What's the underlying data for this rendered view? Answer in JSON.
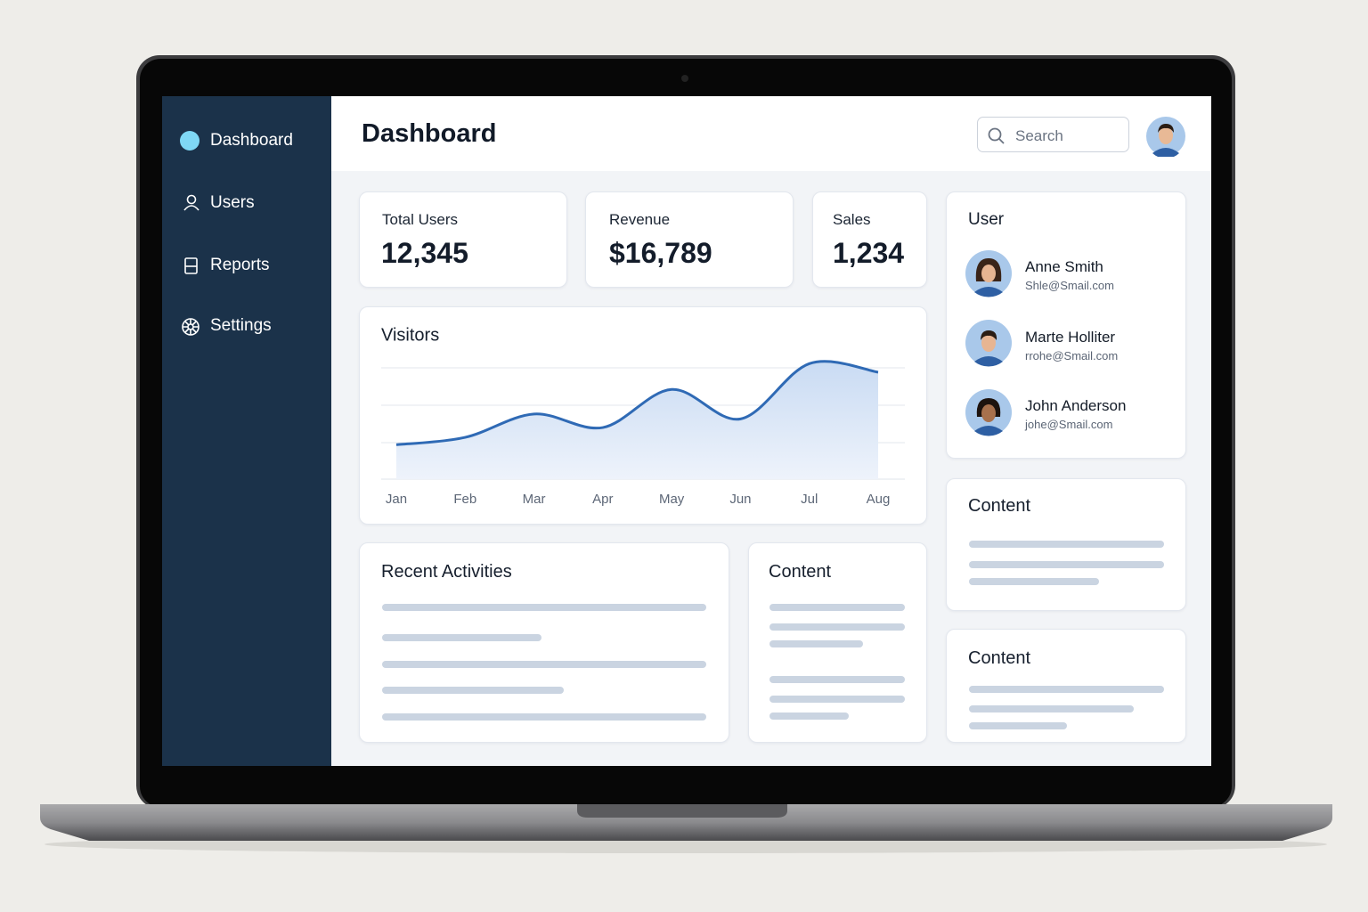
{
  "sidebar": {
    "items": [
      "Dashboard",
      "Users",
      "Reports",
      "Settings"
    ]
  },
  "header": {
    "title": "Dashboard",
    "search_placeholder": "Search"
  },
  "stats": [
    {
      "label": "Total Users",
      "value": "12,345"
    },
    {
      "label": "Revenue",
      "value": "$16,789"
    },
    {
      "label": "Sales",
      "value": "1,234"
    }
  ],
  "visitors_chart": {
    "type": "line",
    "title": "Visitors",
    "categories": [
      "Jan",
      "Feb",
      "Mar",
      "Apr",
      "May",
      "Jun",
      "Jul",
      "Aug"
    ],
    "values": [
      28,
      34,
      53,
      42,
      73,
      49,
      94,
      87
    ],
    "ylim": [
      0,
      100
    ],
    "grid": true,
    "color": "#2f6ab5"
  },
  "user_card": {
    "title": "User",
    "users": [
      {
        "name": "Anne Smith",
        "email": "Shle@Smail.com"
      },
      {
        "name": "Marte Holliter",
        "email": "rrohe@Smail.com"
      },
      {
        "name": "John Anderson",
        "email": "johe@Smail.com"
      }
    ]
  },
  "recent_activities": {
    "title": "Recent Activities"
  },
  "content_cards": [
    "Content",
    "Content",
    "Content"
  ]
}
